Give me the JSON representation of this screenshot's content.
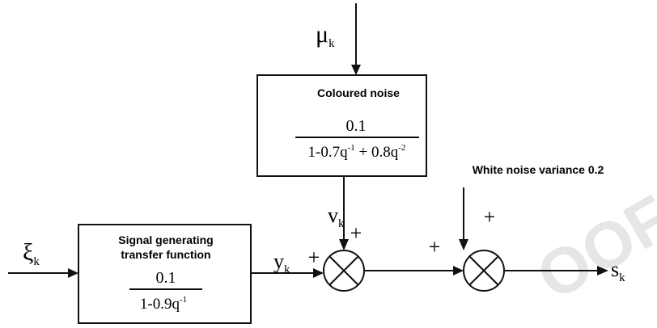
{
  "watermark": "OOF",
  "inputs": {
    "mu": {
      "base": "μ",
      "sub": "k"
    },
    "xi": {
      "base": "ξ",
      "sub": "k"
    },
    "white_noise": "White noise variance 0.2"
  },
  "coloured_noise": {
    "title": "Coloured noise",
    "numerator": "0.1",
    "denominator": [
      {
        "text": "1-0.7q",
        "sup": "-1"
      },
      {
        "text": " + 0.8q",
        "sup": "-2"
      }
    ]
  },
  "signal_tf": {
    "title": [
      "Signal generating",
      "transfer function"
    ],
    "numerator": "0.1",
    "denominator": [
      {
        "text": "1-0.9q",
        "sup": "-1"
      }
    ]
  },
  "signals": {
    "v": {
      "base": "v",
      "sub": "k"
    },
    "y": {
      "base": "y",
      "sub": "k"
    },
    "s": {
      "base": "s",
      "sub": "k"
    }
  },
  "junctions": [
    {
      "signs": [
        "+",
        "+"
      ]
    },
    {
      "signs": [
        "+",
        "+"
      ]
    }
  ]
}
